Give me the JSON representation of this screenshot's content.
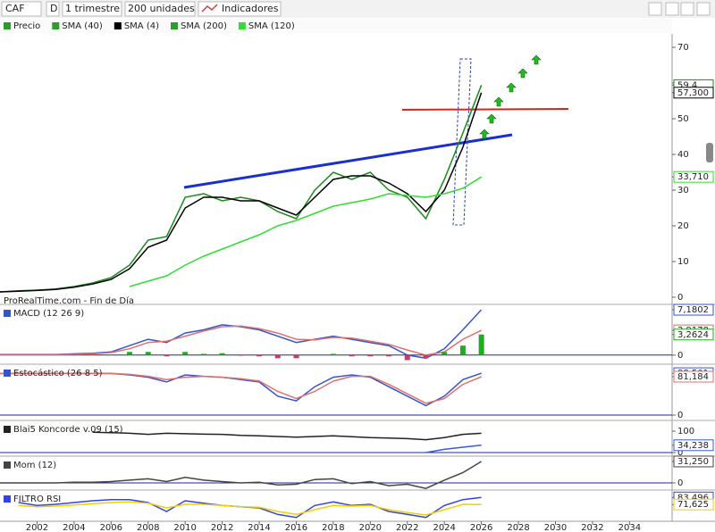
{
  "toolbar": {
    "symbol": "CAF",
    "frequency": "D",
    "period": "1 trimestre",
    "units": "200 unidades",
    "indicators": "Indicadores"
  },
  "legend": [
    {
      "label": "Precio",
      "color": "#2a9d2a"
    },
    {
      "label": "SMA (40)",
      "color": "#2a9d2a"
    },
    {
      "label": "SMA (4)",
      "color": "#000000"
    },
    {
      "label": "SMA (200)",
      "color": "#2a9d2a"
    },
    {
      "label": "SMA (120)",
      "color": "#33dd33"
    }
  ],
  "footer_note": "ProRealTime.com - Fin de Día",
  "xlim": [
    2000,
    2036.3
  ],
  "xticks": [
    2002,
    2004,
    2006,
    2008,
    2010,
    2012,
    2014,
    2016,
    2018,
    2020,
    2022,
    2024,
    2026,
    2028,
    2030,
    2032,
    2034
  ],
  "chart_data": [
    {
      "type": "line",
      "x": [
        2000,
        2001,
        2002,
        2003,
        2004,
        2005,
        2006,
        2007,
        2008,
        2009,
        2010,
        2011,
        2012,
        2013,
        2014,
        2015,
        2016,
        2017,
        2018,
        2019,
        2020,
        2021,
        2022,
        2023,
        2024,
        2025,
        2026
      ],
      "ylim": [
        -1.75,
        73.25
      ],
      "yticks": [
        0,
        10,
        20,
        30,
        40,
        50,
        60,
        70,
        {
          "value": 59.4,
          "label": "59,4"
        },
        {
          "value": 57.3,
          "label": "57,300"
        },
        {
          "value": 33.71,
          "label": "33,710"
        }
      ],
      "series": [
        {
          "color": "#1a8a1a",
          "values": [
            1.5,
            1.8,
            2,
            2.3,
            3,
            4,
            5.5,
            9,
            16,
            17,
            28,
            29,
            27,
            28,
            27,
            24,
            22,
            30,
            35,
            33,
            35,
            30,
            28,
            22,
            33,
            46,
            59.4
          ]
        },
        {
          "color": "#000000",
          "values": [
            1.5,
            1.7,
            1.9,
            2.2,
            2.8,
            3.7,
            5,
            8,
            14,
            16,
            25,
            28,
            28,
            27,
            27,
            25,
            23,
            28,
            33,
            34,
            34,
            32,
            29,
            24,
            30,
            42,
            57.3
          ]
        },
        {
          "color": "#33dd33",
          "values": [
            null,
            null,
            null,
            null,
            null,
            null,
            null,
            3,
            4.5,
            6,
            9,
            11.5,
            13.5,
            15.5,
            17.5,
            20,
            21.5,
            23.5,
            25.5,
            26.5,
            27.5,
            29,
            28.5,
            28,
            29,
            30.5,
            33.71
          ]
        }
      ]
    },
    {
      "type": "line",
      "title": "MACD (12 26 9)",
      "ylim": [
        -1.3,
        7.75
      ],
      "zero_line": true,
      "yticks": [
        0,
        {
          "value": 7.18,
          "label": "7,1802"
        },
        {
          "value": 3.92,
          "label": "3,9178"
        },
        {
          "value": 3.26,
          "label": "3,2624"
        }
      ],
      "series": [
        {
          "color": "#3355cc",
          "values": [
            0.1,
            0.1,
            0.1,
            0.1,
            0.2,
            0.3,
            0.5,
            1.5,
            2.5,
            2,
            3.5,
            4,
            4.8,
            4.5,
            4,
            3,
            2,
            2.5,
            3,
            2.5,
            2,
            1.5,
            0,
            -0.5,
            1,
            4,
            7.18
          ]
        },
        {
          "color": "#e07070",
          "values": [
            0.1,
            0.1,
            0.1,
            0.1,
            0.1,
            0.2,
            0.4,
            1,
            2,
            2.2,
            3,
            3.8,
            4.5,
            4.6,
            4.2,
            3.5,
            2.5,
            2.4,
            2.8,
            2.7,
            2.2,
            1.7,
            0.8,
            0,
            0.5,
            2.5,
            3.92
          ]
        },
        {
          "type": "bar",
          "color": "#22aa22",
          "neg_color": "#c04060",
          "values": [
            0,
            0,
            0,
            0,
            0.1,
            0.1,
            0.1,
            0.5,
            0.5,
            -0.2,
            0.5,
            0.2,
            0.3,
            -0.1,
            -0.2,
            -0.5,
            -0.5,
            0.1,
            0.2,
            -0.2,
            -0.2,
            -0.2,
            -0.8,
            -0.5,
            0.5,
            1.5,
            3.26
          ]
        }
      ]
    },
    {
      "type": "line",
      "title": "Estocástico (26 8 5)",
      "ylim": [
        -9.4,
        103.8
      ],
      "zero_line": true,
      "yticks": [
        0,
        {
          "value": 88.5,
          "label": "88,501"
        },
        {
          "value": 81.18,
          "label": "81,184"
        }
      ],
      "series": [
        {
          "color": "#3355cc",
          "values": [
            88,
            88,
            88,
            88,
            88,
            88,
            88,
            85,
            80,
            70,
            85,
            82,
            80,
            75,
            70,
            40,
            30,
            60,
            80,
            85,
            80,
            60,
            40,
            20,
            40,
            75,
            88.5
          ]
        },
        {
          "color": "#e07070",
          "values": [
            88,
            88,
            88,
            88,
            88,
            88,
            88,
            86,
            82,
            75,
            80,
            82,
            80,
            77,
            72,
            50,
            35,
            50,
            72,
            82,
            82,
            65,
            45,
            25,
            35,
            65,
            81.18
          ]
        }
      ]
    },
    {
      "type": "line",
      "title": "Blai5 Koncorde v.09 (15)",
      "ylim": [
        -16.7,
        141.7
      ],
      "zero_line": true,
      "yticks": [
        0,
        100,
        {
          "value": 34.24,
          "label": "34,238"
        }
      ],
      "series": [
        {
          "color": "#222222",
          "values": [
            null,
            null,
            null,
            null,
            null,
            95,
            93,
            90,
            85,
            90,
            88,
            86,
            85,
            80,
            78,
            75,
            72,
            75,
            78,
            74,
            70,
            68,
            65,
            60,
            70,
            85,
            90
          ]
        },
        {
          "color": "#3a5ad0",
          "values": [
            null,
            null,
            null,
            null,
            null,
            null,
            null,
            null,
            null,
            null,
            null,
            null,
            null,
            null,
            null,
            null,
            null,
            null,
            null,
            null,
            null,
            null,
            null,
            0,
            15,
            25,
            34.24
          ]
        }
      ]
    },
    {
      "type": "line",
      "title": "Mom (12)",
      "ylim": [
        -10.4,
        36.4
      ],
      "zero_line": true,
      "yticks": [
        0,
        {
          "value": 31.25,
          "label": "31,250"
        }
      ],
      "series": [
        {
          "color": "#444444",
          "values": [
            0,
            0,
            0,
            0,
            1,
            1,
            2,
            4,
            6,
            2,
            8,
            4,
            2,
            0,
            1,
            -3,
            -2,
            5,
            6,
            -1,
            2,
            -4,
            -2,
            -8,
            4,
            15,
            31.25
          ]
        }
      ]
    },
    {
      "type": "line",
      "title": "FILTRO RSI",
      "ylim": [
        45,
        93
      ],
      "yticks": [
        {
          "value": 83.5,
          "label": "83,496"
        },
        {
          "value": 71.63,
          "label": "71,625"
        }
      ],
      "series": [
        {
          "color": "#3344dd",
          "values": [
            null,
            75,
            70,
            72,
            75,
            78,
            80,
            80,
            75,
            60,
            78,
            74,
            70,
            68,
            66,
            55,
            50,
            70,
            76,
            70,
            72,
            60,
            55,
            50,
            70,
            80,
            83.5
          ]
        },
        {
          "color": "#f0d000",
          "values": [
            null,
            70,
            68,
            69,
            71,
            73,
            75,
            76,
            74,
            66,
            72,
            72,
            70,
            68,
            67,
            60,
            55,
            63,
            70,
            69,
            70,
            63,
            58,
            54,
            63,
            72,
            71.63
          ]
        }
      ]
    }
  ]
}
